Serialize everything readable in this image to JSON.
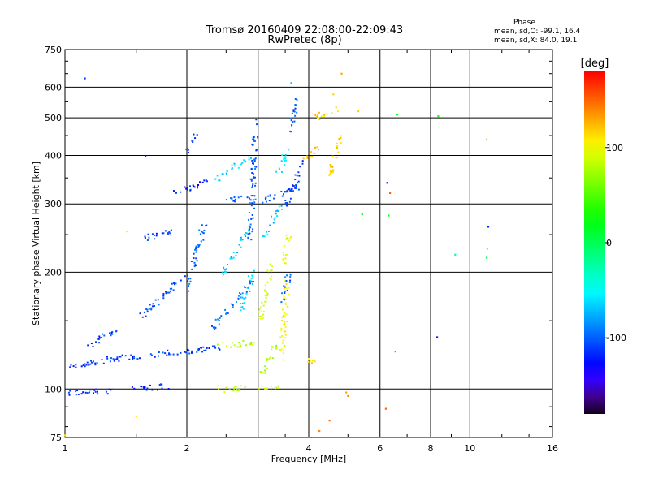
{
  "chart_data": {
    "type": "scatter",
    "title": "Tromsø 20160409 22:08:00-22:09:43",
    "subtitle": "RwPretec (8p)",
    "xlabel": "Frequency [MHz]",
    "ylabel": "Stationary phase Virtual Height [km]",
    "x_scale": "log",
    "y_scale": "log",
    "xlim": [
      1,
      16
    ],
    "ylim": [
      75,
      750
    ],
    "x_ticks": [
      1,
      2,
      4,
      6,
      8,
      10,
      16
    ],
    "x_tick_labels": [
      "1",
      "2",
      "4",
      "6",
      "8",
      "10",
      "16"
    ],
    "y_ticks": [
      75,
      100,
      200,
      300,
      400,
      500,
      600,
      750
    ],
    "y_tick_labels": [
      "75",
      "100",
      "200",
      "300",
      "400",
      "500",
      "600",
      "750"
    ],
    "grid": true,
    "phase_stats": {
      "heading": "Phase",
      "o_line": "mean, sd,O: -99.1, 16.4",
      "x_line": "mean, sd,X:  84.0, 19.1"
    },
    "colorbar": {
      "label": "[deg]",
      "range": [
        -180,
        180
      ],
      "ticks": [
        100,
        0,
        -100
      ],
      "tick_labels": [
        "100",
        "0",
        "-100"
      ]
    },
    "traces": [
      {
        "from": [
          1.0,
          115
        ],
        "to": [
          1.25,
          118
        ],
        "phase": -110
      },
      {
        "from": [
          1.25,
          120
        ],
        "to": [
          1.6,
          122
        ],
        "phase": -115
      },
      {
        "from": [
          1.6,
          123
        ],
        "to": [
          2.4,
          128
        ],
        "phase": -110
      },
      {
        "from": [
          1.0,
          98
        ],
        "to": [
          1.3,
          99
        ],
        "phase": -112
      },
      {
        "from": [
          1.45,
          100
        ],
        "to": [
          1.8,
          102
        ],
        "phase": -120
      },
      {
        "from": [
          2.35,
          100
        ],
        "to": [
          2.75,
          101
        ],
        "phase": 80
      },
      {
        "from": [
          3.0,
          101
        ],
        "to": [
          3.35,
          102
        ],
        "phase": 85
      },
      {
        "from": [
          1.15,
          130
        ],
        "to": [
          1.35,
          145
        ],
        "phase": -112
      },
      {
        "from": [
          1.55,
          155
        ],
        "to": [
          2.0,
          200
        ],
        "phase": -105
      },
      {
        "from": [
          2.0,
          180
        ],
        "to": [
          2.2,
          270
        ],
        "phase": -100
      },
      {
        "from": [
          1.55,
          245
        ],
        "to": [
          1.85,
          258
        ],
        "phase": -108
      },
      {
        "from": [
          1.85,
          320
        ],
        "to": [
          2.25,
          345
        ],
        "phase": -120
      },
      {
        "from": [
          2.0,
          415
        ],
        "to": [
          2.1,
          455
        ],
        "phase": -110
      },
      {
        "from": [
          2.35,
          350
        ],
        "to": [
          2.9,
          400
        ],
        "phase": -60
      },
      {
        "from": [
          2.5,
          310
        ],
        "to": [
          2.9,
          312
        ],
        "phase": -100
      },
      {
        "from": [
          2.9,
          300
        ],
        "to": [
          3.8,
          335
        ],
        "phase": -108
      },
      {
        "from": [
          2.45,
          200
        ],
        "to": [
          2.85,
          260
        ],
        "phase": -70
      },
      {
        "from": [
          2.3,
          145
        ],
        "to": [
          2.9,
          190
        ],
        "phase": -95
      },
      {
        "from": [
          2.7,
          160
        ],
        "to": [
          2.9,
          200
        ],
        "phase": -60
      },
      {
        "from": [
          2.85,
          240
        ],
        "to": [
          2.95,
          490
        ],
        "phase": -100
      },
      {
        "from": [
          2.4,
          130
        ],
        "to": [
          2.9,
          132
        ],
        "phase": 80
      },
      {
        "from": [
          3.0,
          150
        ],
        "to": [
          3.25,
          215
        ],
        "phase": 90
      },
      {
        "from": [
          3.05,
          110
        ],
        "to": [
          3.3,
          130
        ],
        "phase": 75
      },
      {
        "from": [
          3.45,
          210
        ],
        "to": [
          3.55,
          250
        ],
        "phase": 95
      },
      {
        "from": [
          3.4,
          120
        ],
        "to": [
          3.55,
          200
        ],
        "phase": 100
      },
      {
        "from": [
          3.1,
          250
        ],
        "to": [
          3.4,
          300
        ],
        "phase": -65
      },
      {
        "from": [
          3.45,
          170
        ],
        "to": [
          3.55,
          200
        ],
        "phase": -100
      },
      {
        "from": [
          3.35,
          360
        ],
        "to": [
          3.55,
          420
        ],
        "phase": -55
      },
      {
        "from": [
          3.5,
          300
        ],
        "to": [
          3.9,
          390
        ],
        "phase": -110
      },
      {
        "from": [
          3.6,
          460
        ],
        "to": [
          3.7,
          560
        ],
        "phase": -100
      },
      {
        "from": [
          4.1,
          500
        ],
        "to": [
          4.7,
          530
        ],
        "phase": 115
      },
      {
        "from": [
          4.45,
          350
        ],
        "to": [
          4.8,
          450
        ],
        "phase": 120
      },
      {
        "from": [
          3.9,
          390
        ],
        "to": [
          4.2,
          420
        ],
        "phase": 125
      },
      {
        "from": [
          4.0,
          118
        ],
        "to": [
          4.1,
          120
        ],
        "phase": 110
      }
    ],
    "points": [
      {
        "x": 1.12,
        "y": 632,
        "phase": -110
      },
      {
        "x": 1.58,
        "y": 398,
        "phase": -120
      },
      {
        "x": 1.42,
        "y": 255,
        "phase": 105
      },
      {
        "x": 1.0,
        "y": 76,
        "phase": 110
      },
      {
        "x": 1.5,
        "y": 85,
        "phase": 110
      },
      {
        "x": 3.62,
        "y": 615,
        "phase": -70
      },
      {
        "x": 4.6,
        "y": 575,
        "phase": 115
      },
      {
        "x": 4.82,
        "y": 650,
        "phase": 130
      },
      {
        "x": 5.3,
        "y": 520,
        "phase": 115
      },
      {
        "x": 6.62,
        "y": 510,
        "phase": 20
      },
      {
        "x": 8.35,
        "y": 505,
        "phase": 30
      },
      {
        "x": 11.0,
        "y": 440,
        "phase": 120
      },
      {
        "x": 6.25,
        "y": 340,
        "phase": -120
      },
      {
        "x": 6.35,
        "y": 320,
        "phase": 150
      },
      {
        "x": 5.42,
        "y": 282,
        "phase": 25
      },
      {
        "x": 6.3,
        "y": 280,
        "phase": 20
      },
      {
        "x": 11.1,
        "y": 262,
        "phase": -120
      },
      {
        "x": 11.05,
        "y": 230,
        "phase": 120
      },
      {
        "x": 9.2,
        "y": 222,
        "phase": -30
      },
      {
        "x": 11.0,
        "y": 218,
        "phase": 10
      },
      {
        "x": 8.3,
        "y": 136,
        "phase": -150
      },
      {
        "x": 6.55,
        "y": 125,
        "phase": 150
      },
      {
        "x": 6.2,
        "y": 89,
        "phase": 150
      },
      {
        "x": 4.5,
        "y": 83,
        "phase": 150
      },
      {
        "x": 4.25,
        "y": 78,
        "phase": 140
      },
      {
        "x": 4.95,
        "y": 98,
        "phase": 130
      },
      {
        "x": 5.0,
        "y": 96,
        "phase": 140
      }
    ]
  }
}
